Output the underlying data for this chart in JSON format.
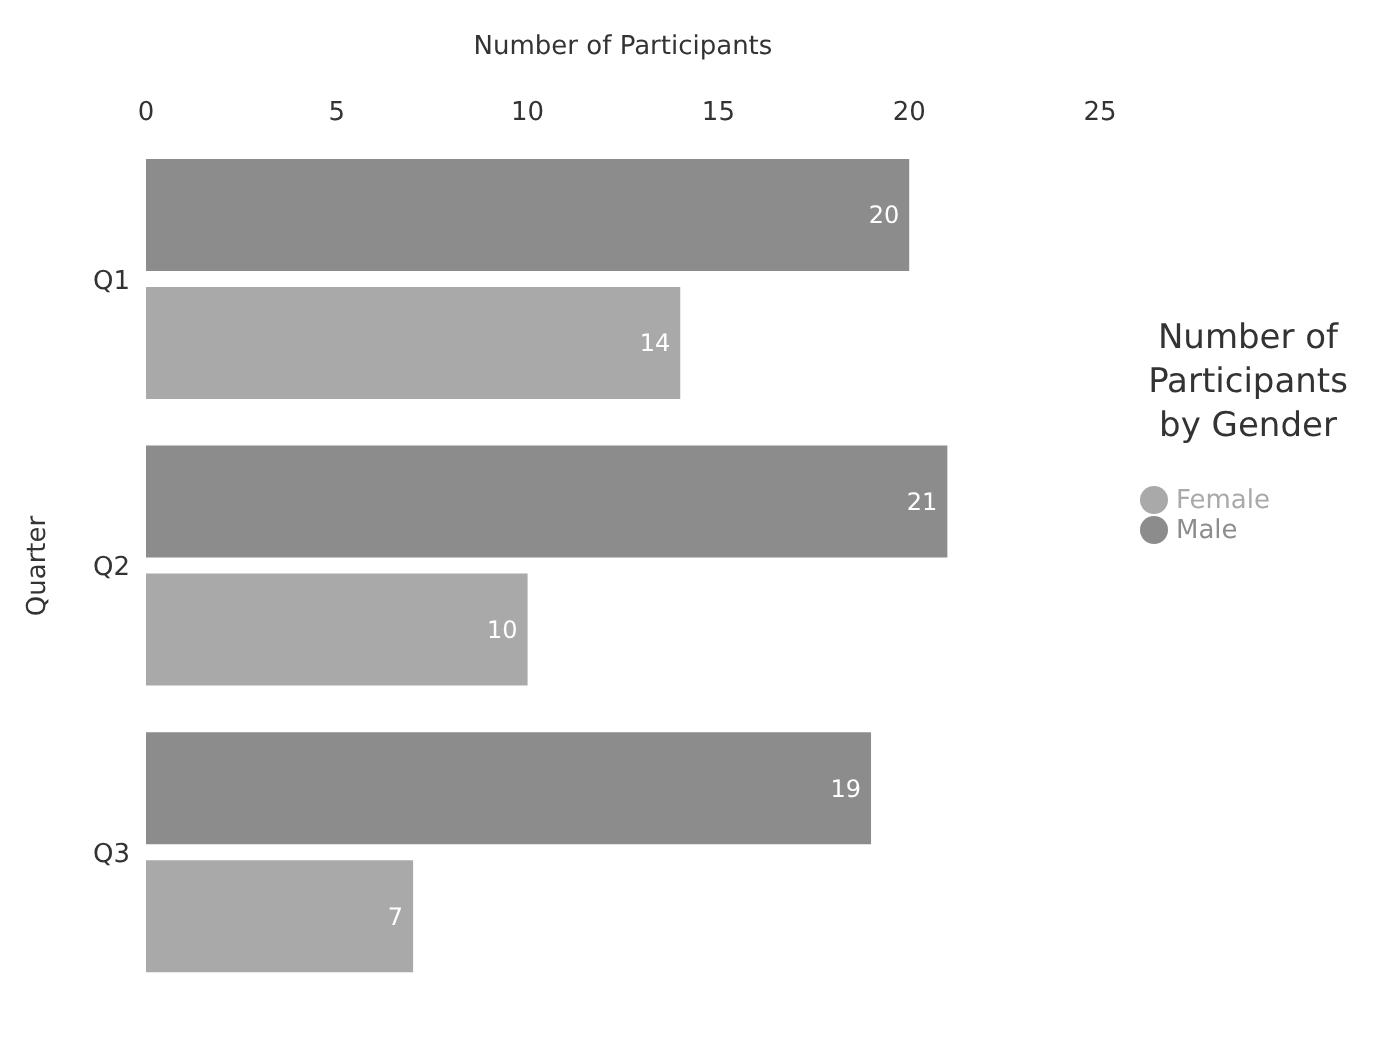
{
  "chart_data": {
    "type": "bar",
    "orientation": "horizontal",
    "title": "Number of Participants by Gender",
    "xlabel": "Number of Participants",
    "ylabel": "Quarter",
    "categories": [
      "Q1",
      "Q2",
      "Q3"
    ],
    "series": [
      {
        "name": "Male",
        "color": "#8c8c8c",
        "values": [
          20,
          21,
          19
        ]
      },
      {
        "name": "Female",
        "color": "#a9a9a9",
        "values": [
          14,
          10,
          7
        ]
      }
    ],
    "xlim": [
      0,
      25
    ],
    "xticks": [
      0,
      5,
      10,
      15,
      20,
      25
    ],
    "data_labels": true,
    "legend": "right",
    "grid": false
  }
}
